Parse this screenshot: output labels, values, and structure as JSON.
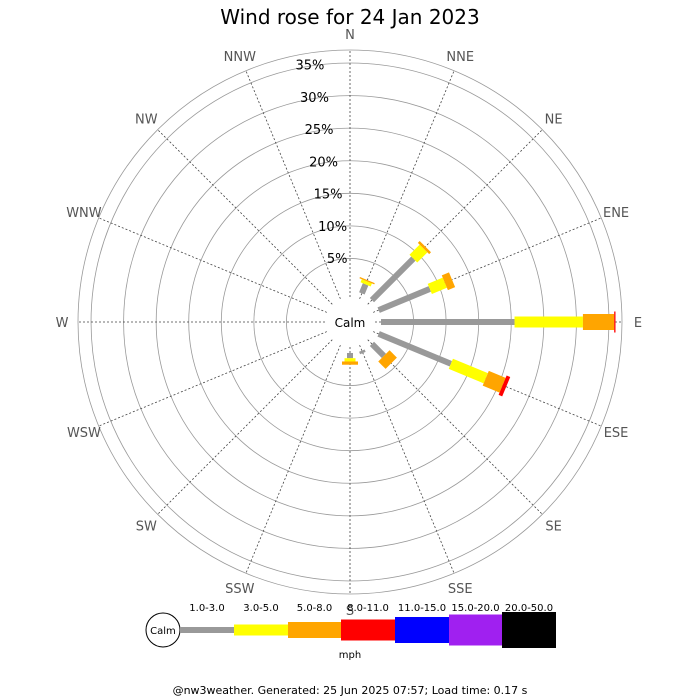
{
  "chart_data": {
    "type": "wind-rose",
    "title": "Wind rose for 24 Jan 2023",
    "unit": "mph",
    "calm_label": "Calm",
    "directions": [
      "N",
      "NNE",
      "NE",
      "ENE",
      "E",
      "ESE",
      "SE",
      "SSE",
      "S",
      "SSW",
      "SW",
      "WSW",
      "W",
      "WNW",
      "NW",
      "NNW"
    ],
    "radial_ticks": [
      5,
      10,
      15,
      20,
      25,
      30,
      35
    ],
    "radial_tick_labels": [
      "5%",
      "10%",
      "15%",
      "20%",
      "25%",
      "30%",
      "35%"
    ],
    "rmax": 37,
    "bins": [
      {
        "label": "1.0-3.0",
        "color": "#999999"
      },
      {
        "label": "3.0-5.0",
        "color": "#ffff00"
      },
      {
        "label": "5.0-8.0",
        "color": "#ffa500"
      },
      {
        "label": "8.0-11.0",
        "color": "#ff0000"
      },
      {
        "label": "11.0-15.0",
        "color": "#0000ff"
      },
      {
        "label": "15.0-20.0",
        "color": "#a020f0"
      },
      {
        "label": "20.0-50.0",
        "color": "#000000"
      }
    ],
    "series": [
      {
        "direction": "N",
        "values": [
          0,
          0,
          0,
          0,
          0,
          0,
          0
        ]
      },
      {
        "direction": "NNE",
        "values": [
          1.5,
          0.5,
          0.2,
          0,
          0,
          0,
          0
        ]
      },
      {
        "direction": "NE",
        "values": [
          9.0,
          2.2,
          0.4,
          0,
          0,
          0,
          0
        ]
      },
      {
        "direction": "ENE",
        "values": [
          8.5,
          2.5,
          1.2,
          0,
          0,
          0,
          0
        ]
      },
      {
        "direction": "E",
        "values": [
          20.5,
          10.5,
          4.8,
          0.2,
          0,
          0,
          0
        ]
      },
      {
        "direction": "ESE",
        "values": [
          12.0,
          5.8,
          2.8,
          0.6,
          0,
          0,
          0
        ]
      },
      {
        "direction": "SE",
        "values": [
          2.6,
          0,
          1.6,
          0,
          0,
          0,
          0
        ]
      },
      {
        "direction": "SSE",
        "values": [
          0.4,
          0,
          0,
          0,
          0,
          0,
          0
        ]
      },
      {
        "direction": "S",
        "values": [
          0.8,
          0.5,
          0.5,
          0,
          0,
          0,
          0
        ]
      },
      {
        "direction": "SSW",
        "values": [
          0,
          0,
          0,
          0,
          0,
          0,
          0
        ]
      },
      {
        "direction": "SW",
        "values": [
          0,
          0,
          0,
          0,
          0,
          0,
          0
        ]
      },
      {
        "direction": "WSW",
        "values": [
          0,
          0,
          0,
          0,
          0,
          0,
          0
        ]
      },
      {
        "direction": "W",
        "values": [
          0,
          0,
          0,
          0,
          0,
          0,
          0
        ]
      },
      {
        "direction": "WNW",
        "values": [
          0,
          0,
          0,
          0,
          0,
          0,
          0
        ]
      },
      {
        "direction": "NW",
        "values": [
          0,
          0,
          0,
          0,
          0,
          0,
          0
        ]
      },
      {
        "direction": "NNW",
        "values": [
          0,
          0,
          0,
          0,
          0,
          0,
          0
        ]
      }
    ]
  },
  "footer": "@nw3weather. Generated: 25 Jun 2025 07:57; Load time: 0.17 s"
}
